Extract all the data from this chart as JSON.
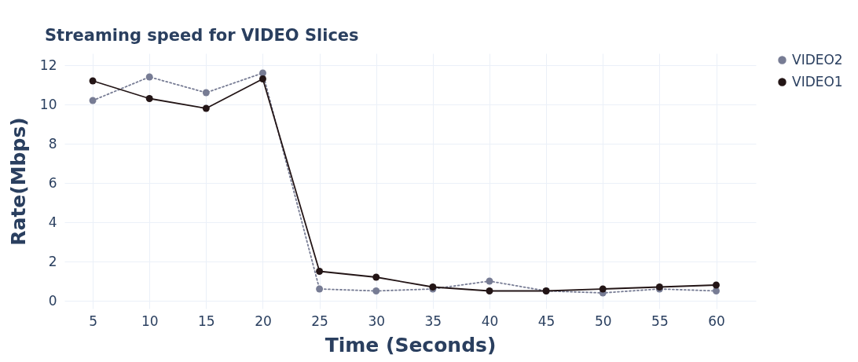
{
  "chart_data": {
    "type": "line",
    "title": "Streaming speed for VIDEO Slices",
    "xlabel": "Time (Seconds)",
    "ylabel": "Rate(Mbps)",
    "x": [
      5,
      10,
      15,
      20,
      25,
      30,
      35,
      40,
      45,
      50,
      55,
      60
    ],
    "series": [
      {
        "name": "VIDEO2",
        "color": "#777c94",
        "line_style": "dotted",
        "values": [
          10.2,
          11.4,
          10.6,
          11.6,
          0.6,
          0.5,
          0.6,
          1.0,
          0.5,
          0.4,
          0.6,
          0.5
        ]
      },
      {
        "name": "VIDEO1",
        "color": "#231516",
        "line_style": "solid",
        "values": [
          11.2,
          10.3,
          9.8,
          11.3,
          1.5,
          1.2,
          0.7,
          0.5,
          0.5,
          0.6,
          0.7,
          0.8
        ]
      }
    ],
    "xlim": [
      2.5,
      63.5
    ],
    "xticks": [
      5,
      10,
      15,
      20,
      25,
      30,
      35,
      40,
      45,
      50,
      55,
      60
    ],
    "ylim": [
      -0.4,
      12.6
    ],
    "yticks": [
      0,
      2,
      4,
      6,
      8,
      10,
      12
    ],
    "grid": true,
    "legend": "top right",
    "marker": "circle"
  }
}
